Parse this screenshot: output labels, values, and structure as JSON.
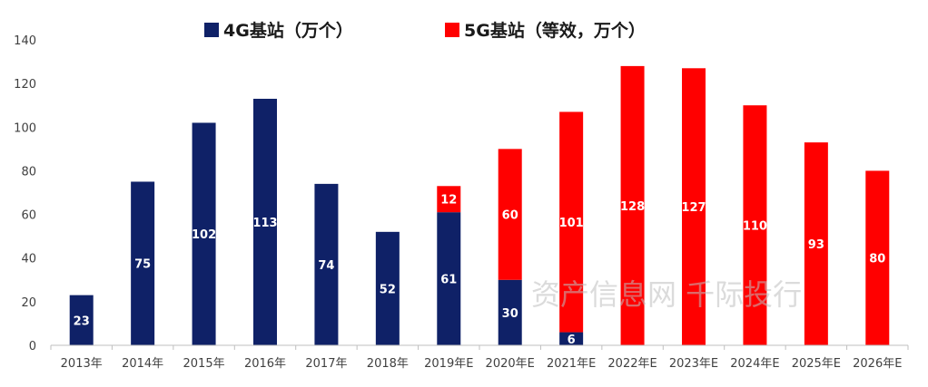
{
  "chart_data": {
    "type": "bar",
    "stacked": true,
    "categories": [
      "2013年",
      "2014年",
      "2015年",
      "2016年",
      "2017年",
      "2018年",
      "2019年E",
      "2020年E",
      "2021年E",
      "2022年E",
      "2023年E",
      "2024年E",
      "2025年E",
      "2026年E"
    ],
    "series": [
      {
        "name": "4G基站（万个）",
        "color": "#0f2167",
        "values": [
          23,
          75,
          102,
          113,
          74,
          52,
          61,
          30,
          6,
          null,
          null,
          null,
          null,
          null
        ]
      },
      {
        "name": "5G基站（等效，万个）",
        "color": "#ff0000",
        "values": [
          null,
          null,
          null,
          null,
          null,
          null,
          12,
          60,
          101,
          128,
          127,
          110,
          93,
          80
        ]
      }
    ],
    "yticks": [
      0,
      20,
      40,
      60,
      80,
      100,
      120,
      140
    ],
    "ylim": [
      0,
      140
    ],
    "grid": false,
    "legend_position": "top",
    "watermark": "资产信息网 千际投行"
  }
}
